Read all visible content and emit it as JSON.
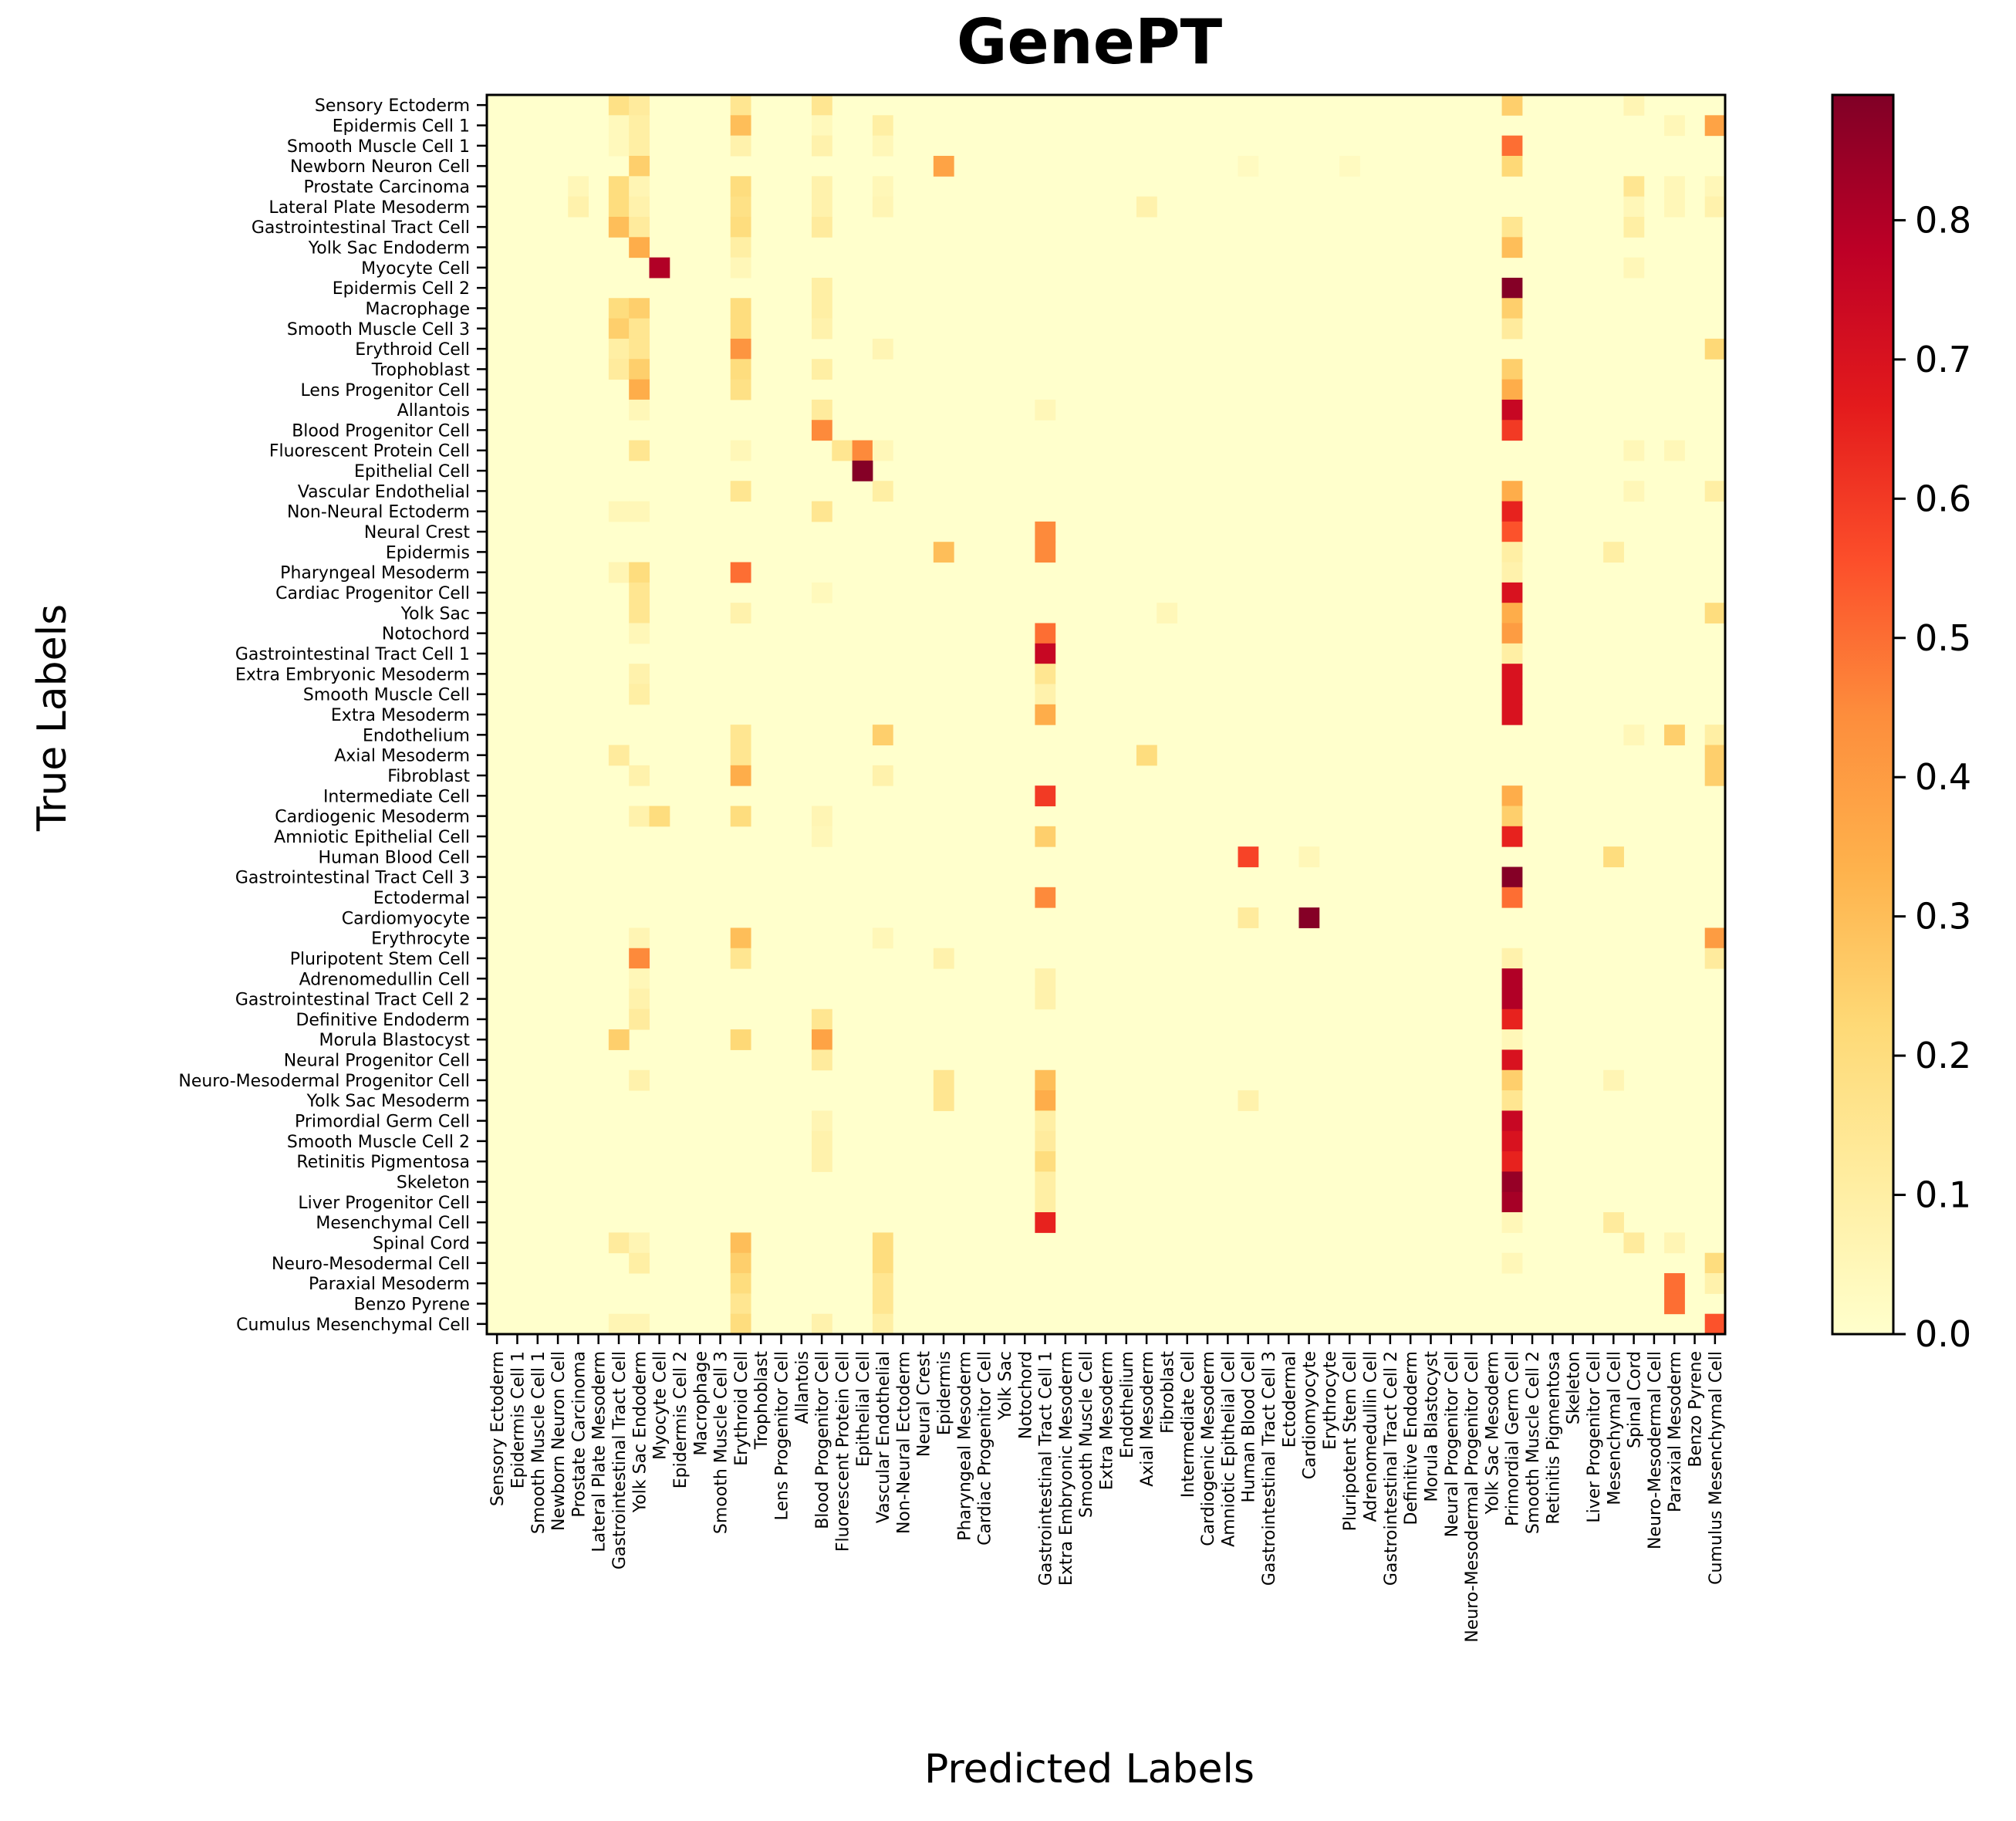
{
  "chart_data": {
    "type": "heatmap",
    "title": "GenePT",
    "xlabel": "Predicted Labels",
    "ylabel": "True Labels",
    "x_categories": [
      "Sensory Ectoderm",
      "Epidermis Cell 1",
      "Smooth Muscle Cell 1",
      "Newborn Neuron Cell",
      "Prostate Carcinoma",
      "Lateral Plate Mesoderm",
      "Gastrointestinal Tract Cell",
      "Yolk Sac Endoderm",
      "Myocyte Cell",
      "Epidermis Cell 2",
      "Macrophage",
      "Smooth Muscle Cell 3",
      "Erythroid Cell",
      "Trophoblast",
      "Lens Progenitor Cell",
      "Allantois",
      "Blood Progenitor Cell",
      "Fluorescent Protein Cell",
      "Epithelial Cell",
      "Vascular Endothelial",
      "Non-Neural Ectoderm",
      "Neural Crest",
      "Epidermis",
      "Pharyngeal Mesoderm",
      "Cardiac Progenitor Cell",
      "Yolk Sac",
      "Notochord",
      "Gastrointestinal Tract Cell 1",
      "Extra Embryonic Mesoderm",
      "Smooth Muscle Cell",
      "Extra Mesoderm",
      "Endothelium",
      "Axial Mesoderm",
      "Fibroblast",
      "Intermediate Cell",
      "Cardiogenic Mesoderm",
      "Amniotic Epithelial Cell",
      "Human Blood Cell",
      "Gastrointestinal Tract Cell 3",
      "Ectodermal",
      "Cardiomyocyte",
      "Erythrocyte",
      "Pluripotent Stem Cell",
      "Adrenomedullin Cell",
      "Gastrointestinal Tract Cell 2",
      "Definitive Endoderm",
      "Morula Blastocyst",
      "Neural Progenitor Cell",
      "Neuro-Mesodermal Progenitor Cell",
      "Yolk Sac Mesoderm",
      "Primordial Germ Cell",
      "Smooth Muscle Cell 2",
      "Retinitis Pigmentosa",
      "Skeleton",
      "Liver Progenitor Cell",
      "Mesenchymal Cell",
      "Spinal Cord",
      "Neuro-Mesodermal Cell",
      "Paraxial Mesoderm",
      "Benzo Pyrene",
      "Cumulus Mesenchymal Cell"
    ],
    "y_categories": [
      "Sensory Ectoderm",
      "Epidermis Cell 1",
      "Smooth Muscle Cell 1",
      "Newborn Neuron Cell",
      "Prostate Carcinoma",
      "Lateral Plate Mesoderm",
      "Gastrointestinal Tract Cell",
      "Yolk Sac Endoderm",
      "Myocyte Cell",
      "Epidermis Cell 2",
      "Macrophage",
      "Smooth Muscle Cell 3",
      "Erythroid Cell",
      "Trophoblast",
      "Lens Progenitor Cell",
      "Allantois",
      "Blood Progenitor Cell",
      "Fluorescent Protein Cell",
      "Epithelial Cell",
      "Vascular Endothelial",
      "Non-Neural Ectoderm",
      "Neural Crest",
      "Epidermis",
      "Pharyngeal Mesoderm",
      "Cardiac Progenitor Cell",
      "Yolk Sac",
      "Notochord",
      "Gastrointestinal Tract Cell 1",
      "Extra Embryonic Mesoderm",
      "Smooth Muscle Cell",
      "Extra Mesoderm",
      "Endothelium",
      "Axial Mesoderm",
      "Fibroblast",
      "Intermediate Cell",
      "Cardiogenic Mesoderm",
      "Amniotic Epithelial Cell",
      "Human Blood Cell",
      "Gastrointestinal Tract Cell 3",
      "Ectodermal",
      "Cardiomyocyte",
      "Erythrocyte",
      "Pluripotent Stem Cell",
      "Adrenomedullin Cell",
      "Gastrointestinal Tract Cell 2",
      "Definitive Endoderm",
      "Morula Blastocyst",
      "Neural Progenitor Cell",
      "Neuro-Mesodermal Progenitor Cell",
      "Yolk Sac Mesoderm",
      "Primordial Germ Cell",
      "Smooth Muscle Cell 2",
      "Retinitis Pigmentosa",
      "Skeleton",
      "Liver Progenitor Cell",
      "Mesenchymal Cell",
      "Spinal Cord",
      "Neuro-Mesodermal Cell",
      "Paraxial Mesoderm",
      "Benzo Pyrene",
      "Cumulus Mesenchymal Cell"
    ],
    "cells": [
      [
        0,
        6,
        0.18
      ],
      [
        0,
        7,
        0.12
      ],
      [
        0,
        12,
        0.15
      ],
      [
        0,
        16,
        0.15
      ],
      [
        0,
        50,
        0.25
      ],
      [
        0,
        56,
        0.06
      ],
      [
        1,
        6,
        0.04
      ],
      [
        1,
        7,
        0.1
      ],
      [
        1,
        12,
        0.3
      ],
      [
        1,
        16,
        0.04
      ],
      [
        1,
        19,
        0.1
      ],
      [
        1,
        58,
        0.05
      ],
      [
        1,
        60,
        0.38
      ],
      [
        2,
        6,
        0.04
      ],
      [
        2,
        7,
        0.1
      ],
      [
        2,
        12,
        0.08
      ],
      [
        2,
        16,
        0.08
      ],
      [
        2,
        19,
        0.05
      ],
      [
        2,
        50,
        0.5
      ],
      [
        3,
        7,
        0.25
      ],
      [
        3,
        22,
        0.38
      ],
      [
        3,
        37,
        0.03
      ],
      [
        3,
        42,
        0.03
      ],
      [
        3,
        50,
        0.22
      ],
      [
        4,
        4,
        0.05
      ],
      [
        4,
        6,
        0.2
      ],
      [
        4,
        7,
        0.06
      ],
      [
        4,
        12,
        0.2
      ],
      [
        4,
        16,
        0.08
      ],
      [
        4,
        19,
        0.05
      ],
      [
        4,
        56,
        0.15
      ],
      [
        4,
        58,
        0.05
      ],
      [
        4,
        60,
        0.05
      ],
      [
        5,
        4,
        0.08
      ],
      [
        5,
        6,
        0.2
      ],
      [
        5,
        7,
        0.08
      ],
      [
        5,
        12,
        0.18
      ],
      [
        5,
        16,
        0.08
      ],
      [
        5,
        19,
        0.06
      ],
      [
        5,
        32,
        0.08
      ],
      [
        5,
        56,
        0.05
      ],
      [
        5,
        58,
        0.05
      ],
      [
        5,
        60,
        0.08
      ],
      [
        6,
        6,
        0.3
      ],
      [
        6,
        7,
        0.12
      ],
      [
        6,
        12,
        0.2
      ],
      [
        6,
        16,
        0.12
      ],
      [
        6,
        50,
        0.15
      ],
      [
        6,
        56,
        0.1
      ],
      [
        7,
        7,
        0.35
      ],
      [
        7,
        12,
        0.1
      ],
      [
        7,
        50,
        0.3
      ],
      [
        8,
        8,
        0.8
      ],
      [
        8,
        12,
        0.05
      ],
      [
        8,
        56,
        0.05
      ],
      [
        9,
        16,
        0.1
      ],
      [
        9,
        50,
        0.88
      ],
      [
        10,
        6,
        0.2
      ],
      [
        10,
        7,
        0.25
      ],
      [
        10,
        12,
        0.2
      ],
      [
        10,
        16,
        0.1
      ],
      [
        10,
        50,
        0.25
      ],
      [
        11,
        6,
        0.25
      ],
      [
        11,
        7,
        0.15
      ],
      [
        11,
        12,
        0.2
      ],
      [
        11,
        16,
        0.08
      ],
      [
        11,
        50,
        0.12
      ],
      [
        12,
        6,
        0.1
      ],
      [
        12,
        7,
        0.15
      ],
      [
        12,
        12,
        0.42
      ],
      [
        12,
        19,
        0.06
      ],
      [
        12,
        60,
        0.22
      ],
      [
        13,
        6,
        0.12
      ],
      [
        13,
        7,
        0.25
      ],
      [
        13,
        12,
        0.2
      ],
      [
        13,
        16,
        0.1
      ],
      [
        13,
        50,
        0.25
      ],
      [
        14,
        7,
        0.35
      ],
      [
        14,
        12,
        0.18
      ],
      [
        14,
        50,
        0.35
      ],
      [
        15,
        7,
        0.05
      ],
      [
        15,
        16,
        0.12
      ],
      [
        15,
        27,
        0.05
      ],
      [
        15,
        50,
        0.75
      ],
      [
        16,
        16,
        0.45
      ],
      [
        16,
        50,
        0.6
      ],
      [
        17,
        7,
        0.15
      ],
      [
        17,
        12,
        0.05
      ],
      [
        17,
        17,
        0.15
      ],
      [
        17,
        18,
        0.45
      ],
      [
        17,
        19,
        0.05
      ],
      [
        17,
        56,
        0.05
      ],
      [
        17,
        58,
        0.05
      ],
      [
        18,
        18,
        0.88
      ],
      [
        19,
        12,
        0.15
      ],
      [
        19,
        19,
        0.1
      ],
      [
        19,
        50,
        0.35
      ],
      [
        19,
        56,
        0.05
      ],
      [
        19,
        60,
        0.1
      ],
      [
        20,
        6,
        0.05
      ],
      [
        20,
        7,
        0.05
      ],
      [
        20,
        16,
        0.15
      ],
      [
        20,
        50,
        0.65
      ],
      [
        21,
        27,
        0.45
      ],
      [
        21,
        50,
        0.55
      ],
      [
        22,
        22,
        0.3
      ],
      [
        22,
        27,
        0.45
      ],
      [
        22,
        50,
        0.1
      ],
      [
        22,
        55,
        0.1
      ],
      [
        23,
        6,
        0.06
      ],
      [
        23,
        7,
        0.2
      ],
      [
        23,
        12,
        0.5
      ],
      [
        23,
        50,
        0.08
      ],
      [
        24,
        7,
        0.15
      ],
      [
        24,
        16,
        0.04
      ],
      [
        24,
        50,
        0.7
      ],
      [
        25,
        7,
        0.15
      ],
      [
        25,
        12,
        0.08
      ],
      [
        25,
        33,
        0.05
      ],
      [
        25,
        50,
        0.35
      ],
      [
        25,
        60,
        0.2
      ],
      [
        26,
        7,
        0.05
      ],
      [
        26,
        27,
        0.5
      ],
      [
        26,
        50,
        0.4
      ],
      [
        27,
        27,
        0.75
      ],
      [
        27,
        50,
        0.1
      ],
      [
        28,
        7,
        0.08
      ],
      [
        28,
        27,
        0.15
      ],
      [
        28,
        50,
        0.7
      ],
      [
        29,
        7,
        0.1
      ],
      [
        29,
        27,
        0.08
      ],
      [
        29,
        50,
        0.7
      ],
      [
        30,
        27,
        0.35
      ],
      [
        30,
        50,
        0.7
      ],
      [
        31,
        12,
        0.15
      ],
      [
        31,
        19,
        0.25
      ],
      [
        31,
        56,
        0.05
      ],
      [
        31,
        58,
        0.25
      ],
      [
        31,
        60,
        0.1
      ],
      [
        32,
        6,
        0.12
      ],
      [
        32,
        12,
        0.15
      ],
      [
        32,
        32,
        0.2
      ],
      [
        32,
        60,
        0.25
      ],
      [
        33,
        7,
        0.08
      ],
      [
        33,
        12,
        0.35
      ],
      [
        33,
        19,
        0.08
      ],
      [
        33,
        60,
        0.25
      ],
      [
        34,
        27,
        0.6
      ],
      [
        34,
        50,
        0.35
      ],
      [
        35,
        7,
        0.08
      ],
      [
        35,
        8,
        0.2
      ],
      [
        35,
        12,
        0.2
      ],
      [
        35,
        16,
        0.06
      ],
      [
        35,
        50,
        0.25
      ],
      [
        36,
        16,
        0.05
      ],
      [
        36,
        27,
        0.25
      ],
      [
        36,
        50,
        0.65
      ],
      [
        37,
        37,
        0.58
      ],
      [
        37,
        40,
        0.05
      ],
      [
        37,
        55,
        0.2
      ],
      [
        38,
        50,
        0.88
      ],
      [
        39,
        27,
        0.45
      ],
      [
        39,
        50,
        0.5
      ],
      [
        40,
        37,
        0.12
      ],
      [
        40,
        40,
        0.88
      ],
      [
        41,
        7,
        0.06
      ],
      [
        41,
        12,
        0.3
      ],
      [
        41,
        19,
        0.05
      ],
      [
        41,
        60,
        0.4
      ],
      [
        42,
        7,
        0.45
      ],
      [
        42,
        12,
        0.15
      ],
      [
        42,
        22,
        0.08
      ],
      [
        42,
        50,
        0.08
      ],
      [
        42,
        60,
        0.12
      ],
      [
        43,
        7,
        0.05
      ],
      [
        43,
        27,
        0.08
      ],
      [
        43,
        50,
        0.8
      ],
      [
        44,
        7,
        0.08
      ],
      [
        44,
        27,
        0.08
      ],
      [
        44,
        50,
        0.8
      ],
      [
        45,
        7,
        0.12
      ],
      [
        45,
        16,
        0.15
      ],
      [
        45,
        50,
        0.65
      ],
      [
        46,
        6,
        0.25
      ],
      [
        46,
        12,
        0.22
      ],
      [
        46,
        16,
        0.38
      ],
      [
        46,
        50,
        0.05
      ],
      [
        47,
        16,
        0.12
      ],
      [
        47,
        50,
        0.7
      ],
      [
        48,
        7,
        0.08
      ],
      [
        48,
        22,
        0.15
      ],
      [
        48,
        27,
        0.3
      ],
      [
        48,
        50,
        0.25
      ],
      [
        48,
        55,
        0.06
      ],
      [
        49,
        22,
        0.15
      ],
      [
        49,
        27,
        0.35
      ],
      [
        49,
        37,
        0.08
      ],
      [
        49,
        50,
        0.15
      ],
      [
        50,
        16,
        0.06
      ],
      [
        50,
        27,
        0.1
      ],
      [
        50,
        50,
        0.75
      ],
      [
        51,
        16,
        0.08
      ],
      [
        51,
        27,
        0.12
      ],
      [
        51,
        50,
        0.7
      ],
      [
        52,
        16,
        0.08
      ],
      [
        52,
        27,
        0.2
      ],
      [
        52,
        50,
        0.65
      ],
      [
        53,
        27,
        0.1
      ],
      [
        53,
        50,
        0.85
      ],
      [
        54,
        27,
        0.1
      ],
      [
        54,
        50,
        0.82
      ],
      [
        55,
        27,
        0.65
      ],
      [
        55,
        50,
        0.05
      ],
      [
        55,
        55,
        0.12
      ],
      [
        56,
        6,
        0.12
      ],
      [
        56,
        7,
        0.06
      ],
      [
        56,
        12,
        0.3
      ],
      [
        56,
        19,
        0.2
      ],
      [
        56,
        56,
        0.12
      ],
      [
        56,
        58,
        0.06
      ],
      [
        57,
        7,
        0.1
      ],
      [
        57,
        12,
        0.25
      ],
      [
        57,
        19,
        0.2
      ],
      [
        57,
        50,
        0.05
      ],
      [
        57,
        60,
        0.2
      ],
      [
        58,
        12,
        0.2
      ],
      [
        58,
        19,
        0.15
      ],
      [
        58,
        58,
        0.5
      ],
      [
        58,
        60,
        0.08
      ],
      [
        59,
        12,
        0.15
      ],
      [
        59,
        19,
        0.15
      ],
      [
        59,
        58,
        0.5
      ],
      [
        60,
        6,
        0.06
      ],
      [
        60,
        7,
        0.06
      ],
      [
        60,
        12,
        0.2
      ],
      [
        60,
        16,
        0.08
      ],
      [
        60,
        19,
        0.1
      ],
      [
        60,
        60,
        0.55
      ]
    ],
    "vmin": 0,
    "vmax": 0.89,
    "colormap": "YlOrRd",
    "colorbar_ticks": [
      "0.0",
      "0.1",
      "0.2",
      "0.3",
      "0.4",
      "0.5",
      "0.6",
      "0.7",
      "0.8"
    ]
  }
}
